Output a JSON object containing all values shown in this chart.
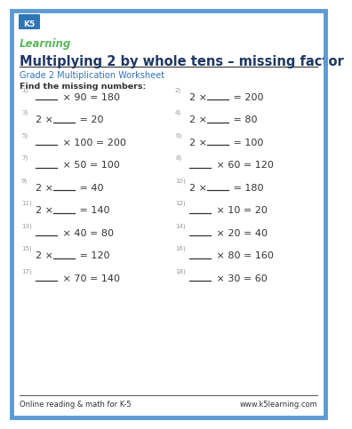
{
  "title": "Multiplying 2 by whole tens – missing factor",
  "subtitle": "Grade 2 Multiplication Worksheet",
  "instruction": "Find the missing numbers:",
  "footer_left": "Online reading & math for K-5",
  "footer_right": "www.k5learning.com",
  "border_color": "#5b9bd5",
  "title_color": "#1f3864",
  "subtitle_color": "#2e75b6",
  "text_color": "#333333",
  "bg_color": "#ffffff",
  "problems": [
    {
      "num": "1)",
      "parts": [
        "_____",
        " × 90 = 180"
      ],
      "blank_left": true
    },
    {
      "num": "2)",
      "parts": [
        "2 × ",
        "_____",
        " = 200"
      ],
      "blank_left": false
    },
    {
      "num": "3)",
      "parts": [
        "2 × ",
        "_____",
        " = 20"
      ],
      "blank_left": false
    },
    {
      "num": "4)",
      "parts": [
        "2 × ",
        "_____",
        " = 80"
      ],
      "blank_left": false
    },
    {
      "num": "5)",
      "parts": [
        "_____",
        " × 100 = 200"
      ],
      "blank_left": true
    },
    {
      "num": "6)",
      "parts": [
        "2 × ",
        "_____",
        " = 100"
      ],
      "blank_left": false
    },
    {
      "num": "7)",
      "parts": [
        "_____",
        " × 50 = 100"
      ],
      "blank_left": true
    },
    {
      "num": "8)",
      "parts": [
        "_____",
        " × 60 = 120"
      ],
      "blank_left": true
    },
    {
      "num": "9)",
      "parts": [
        "2 × ",
        "_____",
        " = 40"
      ],
      "blank_left": false
    },
    {
      "num": "10)",
      "parts": [
        "2 × ",
        "_____",
        " = 180"
      ],
      "blank_left": false
    },
    {
      "num": "11)",
      "parts": [
        "2 × ",
        "_____",
        " = 140"
      ],
      "blank_left": false
    },
    {
      "num": "12)",
      "parts": [
        "_____",
        " × 10 = 20"
      ],
      "blank_left": true
    },
    {
      "num": "13)",
      "parts": [
        "_____",
        " × 40 = 80"
      ],
      "blank_left": true
    },
    {
      "num": "14)",
      "parts": [
        "_____",
        " × 20 = 40"
      ],
      "blank_left": true
    },
    {
      "num": "15)",
      "parts": [
        "2 × ",
        "_____",
        " = 120"
      ],
      "blank_left": false
    },
    {
      "num": "16)",
      "parts": [
        "_____",
        " × 80 = 160"
      ],
      "blank_left": true
    },
    {
      "num": "17)",
      "parts": [
        "_____",
        " × 70 = 140"
      ],
      "blank_left": true
    },
    {
      "num": "18)",
      "parts": [
        "_____",
        " × 30 = 60"
      ],
      "blank_left": true
    }
  ],
  "num_color": "#999999",
  "blank_line_color": "#333333",
  "title_fontsize": 10.5,
  "subtitle_fontsize": 7,
  "instruction_fontsize": 6.8,
  "problem_fontsize": 8,
  "num_fontsize": 5,
  "footer_fontsize": 6
}
